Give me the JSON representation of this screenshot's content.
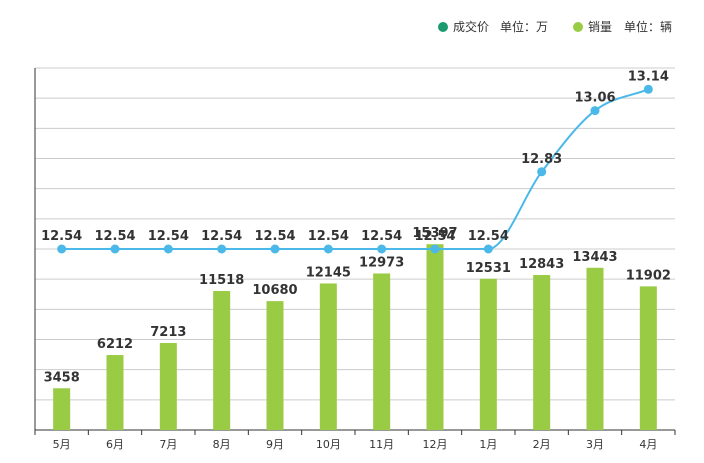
{
  "chart_data": {
    "type": "bar+line",
    "categories": [
      "5月",
      "6月",
      "7月",
      "8月",
      "9月",
      "10月",
      "11月",
      "12月",
      "1月",
      "2月",
      "3月",
      "4月"
    ],
    "series": [
      {
        "name": "销量",
        "unit_label": "单位：辆",
        "type": "bar",
        "color": "#99cc44",
        "values": [
          3458,
          6212,
          7213,
          11518,
          10680,
          12145,
          12973,
          15397,
          12531,
          12843,
          13443,
          11902
        ],
        "labels": [
          "3458",
          "6212",
          "7213",
          "11518",
          "10680",
          "12145",
          "12973",
          "15397",
          "12531",
          "12843",
          "13443",
          "11902"
        ]
      },
      {
        "name": "成交价",
        "unit_label": "单位：万",
        "type": "line",
        "color": "#4ab8e8",
        "legend_color": "#1a9a6e",
        "values": [
          12.54,
          12.54,
          12.54,
          12.54,
          12.54,
          12.54,
          12.54,
          12.54,
          12.54,
          12.83,
          13.06,
          13.14
        ],
        "labels": [
          "12.54",
          "12.54",
          "12.54",
          "12.54",
          "12.54",
          "12.54",
          "12.54",
          "12.54",
          "12.54",
          "12.83",
          "13.06",
          "13.14"
        ]
      }
    ],
    "legend": {
      "position": "top-right",
      "items": [
        {
          "name": "成交价",
          "unit": "单位：万",
          "color": "#1a9a6e"
        },
        {
          "name": "销量",
          "unit": "单位：辆",
          "color": "#99cc44"
        }
      ]
    },
    "grid": true,
    "bar_ylim": [
      0,
      30000
    ],
    "line_ylim": [
      11.86,
      13.22
    ],
    "title": "",
    "xlabel": "",
    "ylabel": ""
  }
}
